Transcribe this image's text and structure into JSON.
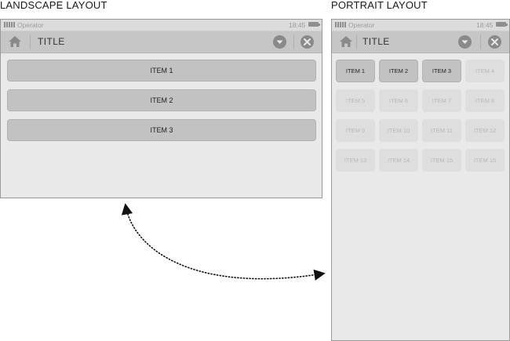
{
  "captions": {
    "landscape": "LANDSCAPE LAYOUT",
    "portrait": "PORTRAIT LAYOUT"
  },
  "status": {
    "operator": "Operator",
    "time": "18:45"
  },
  "header": {
    "title": "TITLE",
    "home_icon": "home-icon",
    "dropdown_icon": "chevron-down-icon",
    "close_icon": "close-icon"
  },
  "landscape": {
    "items": [
      "ITEM 1",
      "ITEM 2",
      "ITEM 3"
    ]
  },
  "portrait": {
    "items": [
      {
        "label": "ITEM 1",
        "active": true
      },
      {
        "label": "ITEM 2",
        "active": true
      },
      {
        "label": "ITEM 3",
        "active": true
      },
      {
        "label": "ITEM 4",
        "active": false
      },
      {
        "label": "ITEM 5",
        "active": false
      },
      {
        "label": "ITEM 6",
        "active": false
      },
      {
        "label": "ITEM 7",
        "active": false
      },
      {
        "label": "ITEM 8",
        "active": false
      },
      {
        "label": "ITEM 9",
        "active": false
      },
      {
        "label": "ITEM 10",
        "active": false
      },
      {
        "label": "ITEM 11",
        "active": false
      },
      {
        "label": "ITEM 12",
        "active": false
      },
      {
        "label": "ITEM 13",
        "active": false
      },
      {
        "label": "ITEM 14",
        "active": false
      },
      {
        "label": "ITEM 15",
        "active": false
      },
      {
        "label": "ITEM 16",
        "active": false
      }
    ]
  },
  "colors": {
    "active_item": "#c2c2c2",
    "inactive_item": "#dedede",
    "titlebar": "#c6c6c6",
    "device_bg": "#e9e9e9"
  }
}
